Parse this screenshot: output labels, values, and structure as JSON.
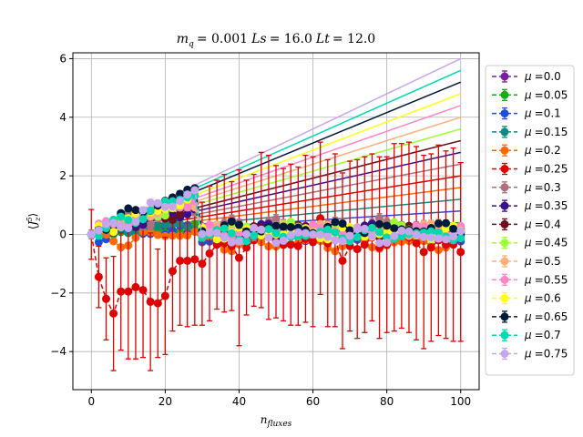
{
  "chart_data": {
    "type": "scatter",
    "title": "m_q = 0.001 Ls = 16.0 Lt = 12.0",
    "title_parts": [
      "m",
      "q",
      "= 0.001",
      "Ls",
      "= 16.0",
      "Lt",
      "= 12.0"
    ],
    "xlabel": "n_fluxes",
    "xlabel_parts": [
      "n",
      "fluxes"
    ],
    "ylabel": "⟨J_z^5⟩",
    "ylabel_parts": [
      "⟨",
      "J",
      "z",
      "5",
      "⟩"
    ],
    "xlim": [
      -5,
      105
    ],
    "ylim": [
      -5.3,
      6.2
    ],
    "xticks": [
      0,
      20,
      40,
      60,
      80,
      100
    ],
    "yticks": [
      -4,
      -2,
      0,
      2,
      4,
      6
    ],
    "grid": true,
    "legend_position": "outside-right",
    "x": [
      0,
      2,
      4,
      6,
      8,
      10,
      12,
      14,
      16,
      18,
      20,
      22,
      24,
      26,
      28,
      30,
      32,
      34,
      36,
      38,
      40,
      42,
      44,
      46,
      48,
      50,
      52,
      54,
      56,
      58,
      60,
      62,
      64,
      66,
      68,
      70,
      72,
      74,
      76,
      78,
      80,
      82,
      84,
      86,
      88,
      90,
      92,
      94,
      96,
      98,
      100
    ],
    "series": [
      {
        "name": "μ =0.0",
        "label_mu": "μ",
        "label_value": "=0.0",
        "color": "#7b1fa2",
        "slope": 0.002,
        "offset": 0.12,
        "amp": 0.12,
        "err": 0.05
      },
      {
        "name": "μ =0.05",
        "label_mu": "μ",
        "label_value": "=0.05",
        "color": "#1aab1a",
        "slope": 0.004,
        "offset": 0.08,
        "amp": 0.12,
        "err": 0.05
      },
      {
        "name": "μ =0.1",
        "label_mu": "μ",
        "label_value": "=0.1",
        "color": "#1f4fd8",
        "slope": 0.008,
        "offset": -0.05,
        "amp": 0.15,
        "err": 0.06
      },
      {
        "name": "μ =0.15",
        "label_mu": "μ",
        "label_value": "=0.15",
        "color": "#0c8c80",
        "slope": 0.012,
        "offset": 0.05,
        "amp": 0.15,
        "err": 0.06
      },
      {
        "name": "μ =0.2",
        "label_mu": "μ",
        "label_value": "=0.2",
        "color": "#ff6a00",
        "slope": 0.016,
        "offset": -0.3,
        "amp": 0.18,
        "err": 0.08
      },
      {
        "name": "μ =0.25",
        "label_mu": "μ",
        "label_value": "=0.25",
        "color": "#e00000",
        "slope": 0.02,
        "offset": -0.35,
        "amp": 0.25,
        "err": 1.8
      },
      {
        "name": "μ =0.3",
        "label_mu": "μ",
        "label_value": "=0.3",
        "color": "#b0707a",
        "slope": 0.024,
        "offset": 0.25,
        "amp": 0.2,
        "err": 0.15
      },
      {
        "name": "μ =0.35",
        "label_mu": "μ",
        "label_value": "=0.35",
        "color": "#3a0f8c",
        "slope": 0.028,
        "offset": 0.15,
        "amp": 0.15,
        "err": 0.07
      },
      {
        "name": "μ =0.4",
        "label_mu": "μ",
        "label_value": "=0.4",
        "color": "#6e0f1e",
        "slope": 0.032,
        "offset": 0.1,
        "amp": 0.15,
        "err": 0.07
      },
      {
        "name": "μ =0.45",
        "label_mu": "μ",
        "label_value": "=0.45",
        "color": "#9cff33",
        "slope": 0.036,
        "offset": 0.2,
        "amp": 0.15,
        "err": 0.07
      },
      {
        "name": "μ =0.5",
        "label_mu": "μ",
        "label_value": "=0.5",
        "color": "#ffad7a",
        "slope": 0.04,
        "offset": 0.15,
        "amp": 0.15,
        "err": 0.07
      },
      {
        "name": "μ =0.55",
        "label_mu": "μ",
        "label_value": "=0.55",
        "color": "#ff85c8",
        "slope": 0.044,
        "offset": 0.1,
        "amp": 0.15,
        "err": 0.07
      },
      {
        "name": "μ =0.6",
        "label_mu": "μ",
        "label_value": "=0.6",
        "color": "#ffff1a",
        "slope": 0.048,
        "offset": 0.05,
        "amp": 0.15,
        "err": 0.07
      },
      {
        "name": "μ =0.65",
        "label_mu": "μ",
        "label_value": "=0.65",
        "color": "#001a3d",
        "slope": 0.052,
        "offset": 0.2,
        "amp": 0.15,
        "err": 0.07
      },
      {
        "name": "μ =0.7",
        "label_mu": "μ",
        "label_value": "=0.7",
        "color": "#00d9b0",
        "slope": 0.056,
        "offset": 0.0,
        "amp": 0.15,
        "err": 0.07
      },
      {
        "name": "μ =0.75",
        "label_mu": "μ",
        "label_value": "=0.75",
        "color": "#c7a6f0",
        "slope": 0.06,
        "offset": -0.05,
        "amp": 0.18,
        "err": 0.08
      }
    ],
    "red_series_values": [
      0,
      -1.45,
      -2.2,
      -2.7,
      -1.95,
      -1.95,
      -1.8,
      -1.9,
      -2.3,
      -2.35,
      -2.1,
      -1.25,
      -0.9,
      -0.9,
      -0.85,
      -1.0,
      -0.65,
      -0.35,
      -0.3,
      -0.4,
      -0.8,
      -0.45,
      -0.2,
      0.15,
      -0.1,
      -0.25,
      -0.35,
      -0.35,
      -0.4,
      -0.15,
      -0.25,
      0.55,
      -0.3,
      -0.2,
      -0.9,
      -0.4,
      -0.5,
      -0.35,
      -0.1,
      -0.45,
      -0.35,
      -0.1,
      -0.05,
      -0.1,
      -0.3,
      -0.6,
      -0.45,
      -0.2,
      -0.35,
      -0.35,
      -0.6
    ],
    "red_series_errors": [
      0.85,
      1.05,
      1.4,
      1.95,
      2.0,
      2.3,
      2.45,
      2.3,
      2.35,
      1.85,
      2.0,
      2.05,
      2.2,
      2.25,
      2.25,
      2.1,
      2.3,
      2.2,
      2.35,
      2.2,
      3.0,
      2.3,
      2.25,
      2.65,
      2.8,
      2.6,
      2.6,
      2.75,
      2.7,
      2.85,
      2.9,
      2.6,
      2.85,
      2.95,
      3.0,
      2.9,
      3.05,
      3.0,
      2.85,
      3.1,
      3.0,
      3.2,
      3.15,
      3.25,
      3.3,
      3.3,
      3.2,
      3.25,
      3.2,
      3.3,
      3.05
    ]
  }
}
